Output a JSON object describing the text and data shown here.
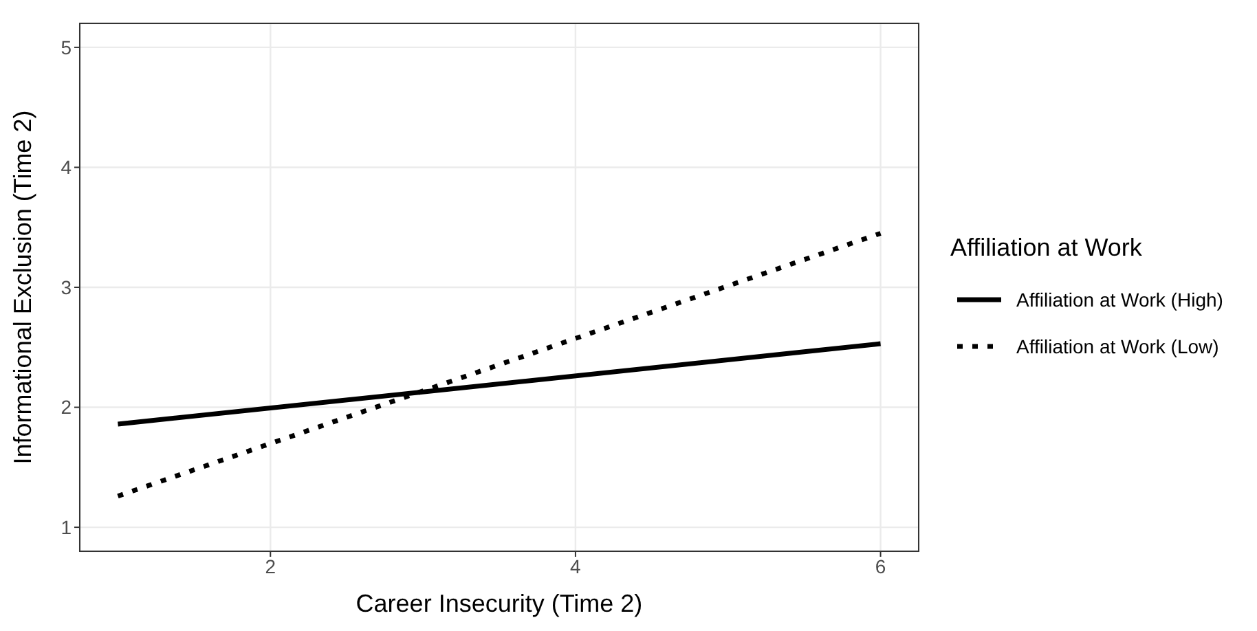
{
  "chart_data": {
    "type": "line",
    "xlabel": "Career Insecurity (Time 2)",
    "ylabel": "Informational Exclusion (Time 2)",
    "legend_title": "Affiliation at Work",
    "x": [
      1,
      6
    ],
    "series": [
      {
        "name": "Affiliation at Work (High)",
        "color": "#000000",
        "values": [
          1.86,
          2.53
        ],
        "line_style": "solid"
      },
      {
        "name": "Affiliation at Work (Low)",
        "color": "#000000",
        "values": [
          1.26,
          3.45
        ],
        "line_style": "dotted"
      }
    ],
    "xlim": [
      0.75,
      6.25
    ],
    "xticks": [
      2,
      4,
      6
    ],
    "ylim": [
      0.8,
      5.2
    ],
    "yticks": [
      1,
      2,
      3,
      4,
      5
    ],
    "grid": true,
    "legend": "right",
    "marker": "none"
  }
}
